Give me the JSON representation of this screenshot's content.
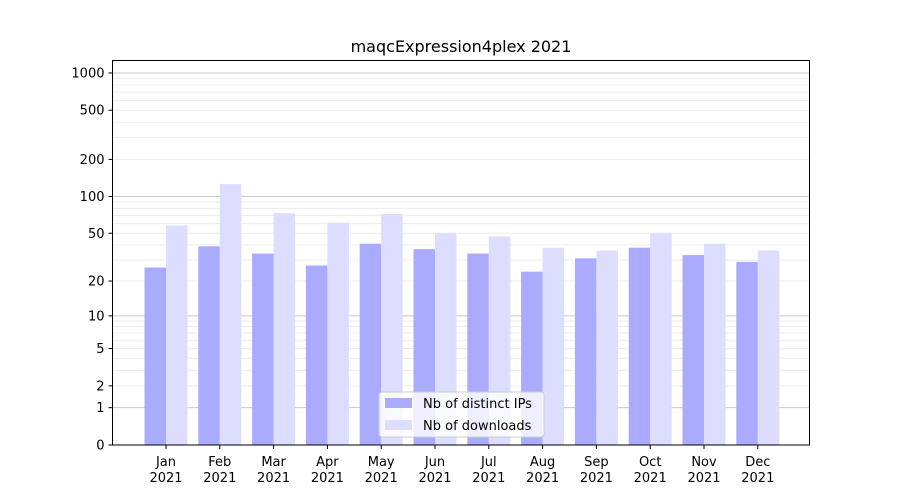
{
  "chart_data": {
    "type": "bar",
    "title": "maqcExpression4plex 2021",
    "xlabel": "",
    "ylabel": "",
    "yscale": "symlog",
    "ylim": [
      0,
      1300
    ],
    "yticks": [
      0,
      1,
      2,
      5,
      10,
      20,
      50,
      100,
      200,
      500,
      1000
    ],
    "grid": true,
    "legend_position": "bottom-center",
    "categories": [
      "Jan\n2021",
      "Feb\n2021",
      "Mar\n2021",
      "Apr\n2021",
      "May\n2021",
      "Jun\n2021",
      "Jul\n2021",
      "Aug\n2021",
      "Sep\n2021",
      "Oct\n2021",
      "Nov\n2021",
      "Dec\n2021"
    ],
    "series": [
      {
        "name": "Nb of distinct IPs",
        "color": "#aaaaff",
        "values": [
          26,
          39,
          34,
          27,
          41,
          37,
          34,
          24,
          31,
          38,
          33,
          29
        ]
      },
      {
        "name": "Nb of downloads",
        "color": "#ddddff",
        "values": [
          58,
          126,
          73,
          61,
          72,
          50,
          47,
          38,
          36,
          50,
          41,
          36
        ]
      }
    ]
  }
}
